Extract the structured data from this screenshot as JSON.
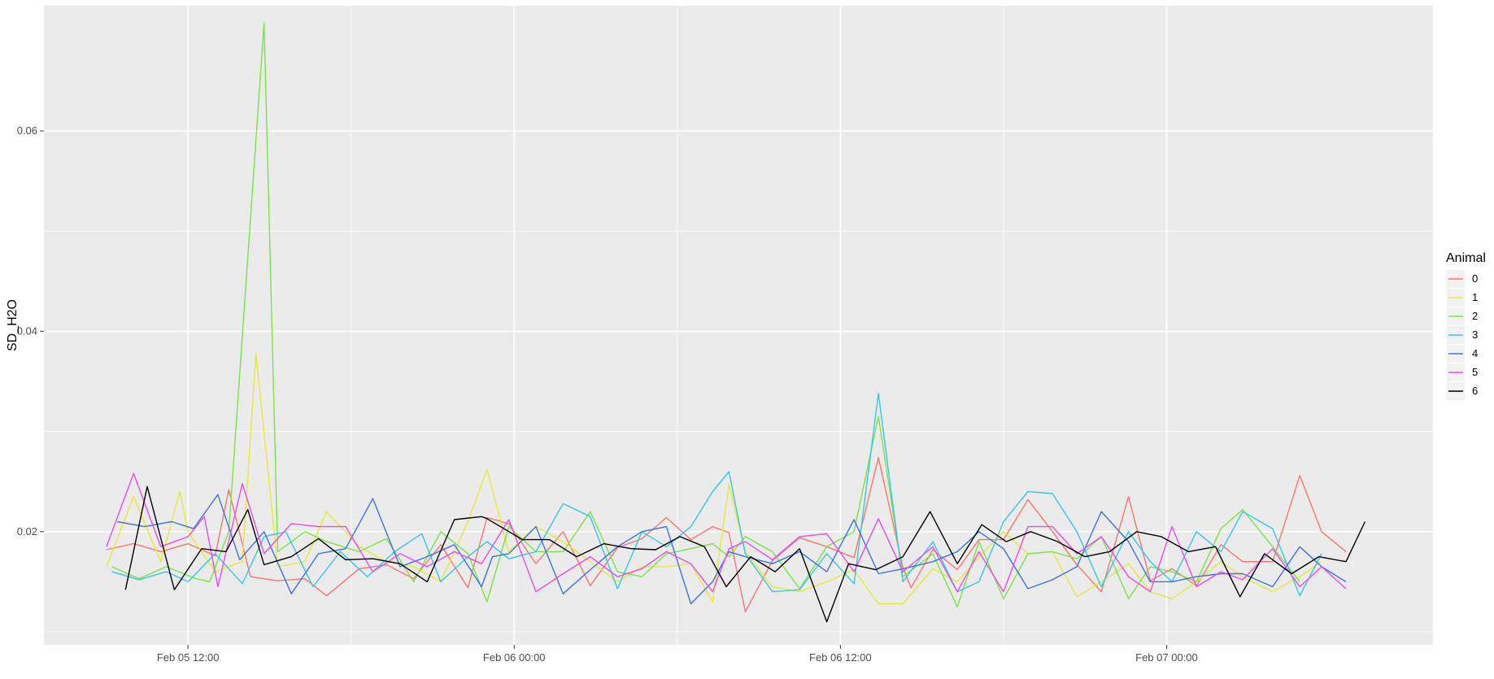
{
  "chart_data": {
    "type": "line",
    "ylabel": "SD_H2O",
    "xlabel": "",
    "x_tick_labels": [
      "Feb 05 12:00",
      "Feb 06 00:00",
      "Feb 06 12:00",
      "Feb 07 00:00"
    ],
    "x_tick_values": [
      0,
      12,
      24,
      36
    ],
    "x_minor_values": [
      6,
      18,
      30
    ],
    "xlim": [
      -5.3,
      45.8
    ],
    "y_tick_labels": [
      "0.02",
      "0.04",
      "0.06"
    ],
    "y_tick_values": [
      0.02,
      0.04,
      0.06
    ],
    "y_minor_values": [
      0.01,
      0.03,
      0.05
    ],
    "ylim": [
      0.0087,
      0.0725
    ],
    "grid": true,
    "legend": {
      "title": "Animal",
      "position": "right"
    },
    "series": [
      {
        "name": "0",
        "color": "#F8766D",
        "x": [
          -3.0,
          -2.0,
          -1.0,
          0.0,
          1.0,
          1.5,
          2.3,
          3.3,
          4.3,
          5.1,
          6.3,
          7.3,
          8.3,
          9.3,
          10.3,
          11.0,
          11.8,
          12.8,
          13.8,
          14.8,
          15.8,
          16.7,
          17.6,
          18.5,
          19.3,
          19.9,
          20.5,
          21.5,
          22.5,
          23.5,
          24.5,
          25.4,
          26.3,
          26.6,
          27.4,
          28.3,
          29.1,
          30.0,
          30.9,
          31.8,
          32.7,
          33.6,
          34.6,
          35.4,
          36.2,
          37.1,
          38.0,
          38.8,
          39.9,
          40.9,
          41.7,
          42.6
        ],
        "y": [
          0.0182,
          0.0188,
          0.018,
          0.0188,
          0.0176,
          0.0242,
          0.0155,
          0.0151,
          0.0153,
          0.0136,
          0.0163,
          0.0167,
          0.0153,
          0.0187,
          0.0144,
          0.0214,
          0.0208,
          0.0168,
          0.02,
          0.0146,
          0.0184,
          0.0193,
          0.0214,
          0.0192,
          0.0205,
          0.0199,
          0.012,
          0.0171,
          0.0194,
          0.0185,
          0.0174,
          0.0274,
          0.0164,
          0.0144,
          0.0182,
          0.0162,
          0.0192,
          0.0192,
          0.0232,
          0.02,
          0.0167,
          0.014,
          0.0235,
          0.0151,
          0.0163,
          0.0146,
          0.0187,
          0.017,
          0.017,
          0.0256,
          0.02,
          0.018
        ]
      },
      {
        "name": "1",
        "color": "#E6E83A",
        "x": [
          -3.0,
          -2.0,
          -1.0,
          -0.3,
          0.0,
          1.0,
          2.0,
          2.5,
          3.3,
          4.3,
          5.1,
          6.3,
          7.3,
          8.3,
          9.3,
          10.3,
          11.0,
          11.8,
          12.8,
          13.8,
          14.8,
          15.8,
          16.7,
          17.6,
          18.5,
          19.3,
          19.9,
          20.5,
          21.5,
          22.5,
          23.5,
          24.5,
          25.4,
          26.3,
          27.4,
          28.3,
          29.1,
          30.0,
          30.9,
          31.8,
          32.7,
          33.6,
          34.6,
          35.4,
          36.2,
          37.1,
          38.0,
          38.8,
          39.9,
          40.9,
          41.7
        ],
        "y": [
          0.0165,
          0.0235,
          0.017,
          0.024,
          0.02,
          0.016,
          0.017,
          0.0378,
          0.0165,
          0.017,
          0.022,
          0.0185,
          0.017,
          0.0165,
          0.015,
          0.021,
          0.0262,
          0.018,
          0.0205,
          0.019,
          0.017,
          0.015,
          0.0165,
          0.0165,
          0.0168,
          0.013,
          0.0247,
          0.018,
          0.0145,
          0.014,
          0.015,
          0.0162,
          0.0128,
          0.0128,
          0.0163,
          0.015,
          0.0175,
          0.02,
          0.0178,
          0.018,
          0.0135,
          0.015,
          0.0168,
          0.014,
          0.0133,
          0.015,
          0.017,
          0.0155,
          0.014,
          0.0155,
          0.017
        ]
      },
      {
        "name": "2",
        "color": "#7CE24A",
        "x": [
          -2.8,
          -1.8,
          -0.8,
          0.3,
          0.8,
          1.5,
          2.8,
          3.3,
          4.3,
          5.1,
          6.3,
          7.3,
          8.3,
          9.3,
          10.3,
          11.0,
          11.8,
          12.8,
          13.8,
          14.8,
          15.8,
          16.7,
          17.6,
          18.5,
          19.3,
          19.9,
          20.5,
          21.5,
          22.5,
          23.5,
          24.5,
          25.4,
          26.3,
          27.4,
          28.3,
          29.1,
          30.0,
          30.9,
          31.8,
          32.7,
          33.6,
          34.6,
          35.4,
          36.2,
          37.1,
          38.0,
          38.8,
          39.9,
          40.9
        ],
        "y": [
          0.0165,
          0.0153,
          0.0165,
          0.0153,
          0.015,
          0.02,
          0.0708,
          0.018,
          0.02,
          0.019,
          0.018,
          0.0193,
          0.015,
          0.02,
          0.0178,
          0.013,
          0.0205,
          0.018,
          0.018,
          0.022,
          0.016,
          0.0155,
          0.0178,
          0.0183,
          0.0188,
          0.0175,
          0.0195,
          0.018,
          0.0143,
          0.0185,
          0.02,
          0.0315,
          0.0155,
          0.0178,
          0.0125,
          0.019,
          0.0133,
          0.0178,
          0.018,
          0.0173,
          0.0195,
          0.0133,
          0.0165,
          0.016,
          0.015,
          0.0203,
          0.0222,
          0.0185,
          0.015
        ]
      },
      {
        "name": "3",
        "color": "#36C6E8",
        "x": [
          -2.8,
          -1.8,
          -0.8,
          0.0,
          1.0,
          2.0,
          2.8,
          3.6,
          4.6,
          5.6,
          6.6,
          7.6,
          8.6,
          9.3,
          10.3,
          11.0,
          11.8,
          12.8,
          13.8,
          14.8,
          15.8,
          16.7,
          17.6,
          18.5,
          19.3,
          19.9,
          20.5,
          21.5,
          22.5,
          23.5,
          24.5,
          25.4,
          26.3,
          27.4,
          28.3,
          29.1,
          30.0,
          30.9,
          31.8,
          32.7,
          33.6,
          34.6,
          35.4,
          36.2,
          37.1,
          38.0,
          38.8,
          39.9,
          40.9,
          41.7
        ],
        "y": [
          0.016,
          0.0152,
          0.016,
          0.015,
          0.0178,
          0.0148,
          0.0195,
          0.02,
          0.0145,
          0.018,
          0.0155,
          0.018,
          0.0198,
          0.015,
          0.0175,
          0.019,
          0.0173,
          0.018,
          0.0228,
          0.0215,
          0.0143,
          0.02,
          0.0185,
          0.0205,
          0.024,
          0.026,
          0.0178,
          0.014,
          0.0142,
          0.0178,
          0.0148,
          0.0338,
          0.015,
          0.019,
          0.014,
          0.015,
          0.021,
          0.024,
          0.0238,
          0.02,
          0.0145,
          0.02,
          0.017,
          0.015,
          0.02,
          0.018,
          0.022,
          0.0203,
          0.0136,
          0.0178
        ]
      },
      {
        "name": "4",
        "color": "#3C72E4",
        "x": [
          -2.6,
          -1.6,
          -0.6,
          0.2,
          1.1,
          1.9,
          2.8,
          3.8,
          4.8,
          5.8,
          6.8,
          7.8,
          8.8,
          9.8,
          10.8,
          11.2,
          11.8,
          12.8,
          13.8,
          14.8,
          15.8,
          16.7,
          17.6,
          18.5,
          19.3,
          19.9,
          20.5,
          21.5,
          22.5,
          23.5,
          24.5,
          25.4,
          26.3,
          27.4,
          28.3,
          29.1,
          30.0,
          30.9,
          31.8,
          32.7,
          33.6,
          34.6,
          35.4,
          36.2,
          37.1,
          38.0,
          38.8,
          39.9,
          40.9,
          41.7,
          42.6
        ],
        "y": [
          0.021,
          0.0205,
          0.021,
          0.0203,
          0.0237,
          0.0172,
          0.02,
          0.0138,
          0.0178,
          0.0183,
          0.0233,
          0.0165,
          0.0175,
          0.0187,
          0.0145,
          0.0175,
          0.0178,
          0.0205,
          0.0138,
          0.0162,
          0.0185,
          0.02,
          0.0205,
          0.0128,
          0.015,
          0.018,
          0.0175,
          0.0168,
          0.018,
          0.016,
          0.0212,
          0.0158,
          0.0163,
          0.017,
          0.018,
          0.02,
          0.0183,
          0.0143,
          0.0152,
          0.0165,
          0.022,
          0.019,
          0.015,
          0.015,
          0.0155,
          0.0158,
          0.0158,
          0.0145,
          0.0185,
          0.0165,
          0.015
        ]
      },
      {
        "name": "5",
        "color": "#E94BEB",
        "x": [
          -3.0,
          -2.0,
          -1.0,
          0.0,
          0.6,
          1.1,
          2.0,
          2.8,
          3.8,
          4.8,
          5.8,
          6.8,
          7.8,
          8.8,
          9.8,
          10.8,
          11.8,
          12.8,
          13.8,
          14.8,
          15.8,
          16.7,
          17.6,
          18.5,
          19.3,
          19.9,
          20.5,
          21.5,
          22.5,
          23.5,
          24.5,
          25.4,
          26.3,
          27.4,
          28.3,
          29.1,
          30.0,
          30.9,
          31.8,
          32.7,
          33.6,
          34.6,
          35.4,
          36.2,
          37.1,
          38.0,
          38.8,
          39.9,
          40.9,
          41.7,
          42.6
        ],
        "y": [
          0.0185,
          0.0258,
          0.0185,
          0.0195,
          0.0215,
          0.0145,
          0.0248,
          0.0178,
          0.0208,
          0.0205,
          0.0205,
          0.016,
          0.0178,
          0.0165,
          0.018,
          0.0168,
          0.0212,
          0.014,
          0.0158,
          0.0175,
          0.0155,
          0.0163,
          0.018,
          0.0168,
          0.014,
          0.0183,
          0.019,
          0.0172,
          0.0195,
          0.0198,
          0.016,
          0.0213,
          0.016,
          0.0185,
          0.014,
          0.018,
          0.014,
          0.0205,
          0.0205,
          0.0178,
          0.0195,
          0.0155,
          0.014,
          0.0205,
          0.0145,
          0.016,
          0.0152,
          0.0183,
          0.0145,
          0.0165,
          0.0143
        ]
      },
      {
        "name": "6",
        "color": "#000000",
        "x": [
          -2.3,
          -1.5,
          -0.5,
          0.5,
          1.4,
          2.2,
          2.8,
          3.8,
          4.8,
          5.8,
          6.8,
          7.8,
          8.8,
          9.8,
          10.8,
          11.0,
          12.3,
          13.3,
          14.3,
          15.3,
          16.3,
          17.2,
          18.1,
          19.0,
          19.8,
          20.7,
          21.6,
          22.5,
          23.5,
          24.3,
          25.3,
          26.3,
          27.3,
          28.3,
          29.2,
          30.1,
          31.0,
          32.0,
          33.0,
          33.9,
          34.9,
          35.8,
          36.8,
          37.8,
          38.7,
          39.6,
          40.6,
          41.6,
          42.6,
          43.3
        ],
        "y": [
          0.0142,
          0.0245,
          0.0142,
          0.0183,
          0.018,
          0.0222,
          0.0167,
          0.0175,
          0.0193,
          0.0172,
          0.0173,
          0.0168,
          0.015,
          0.0212,
          0.0215,
          0.0213,
          0.0192,
          0.0192,
          0.0175,
          0.0188,
          0.0183,
          0.0182,
          0.0195,
          0.0185,
          0.0145,
          0.0175,
          0.016,
          0.0183,
          0.011,
          0.0168,
          0.0162,
          0.0175,
          0.022,
          0.0168,
          0.0207,
          0.019,
          0.02,
          0.019,
          0.0175,
          0.018,
          0.02,
          0.0195,
          0.018,
          0.0185,
          0.0135,
          0.0178,
          0.0158,
          0.0175,
          0.017,
          0.021
        ]
      }
    ]
  }
}
